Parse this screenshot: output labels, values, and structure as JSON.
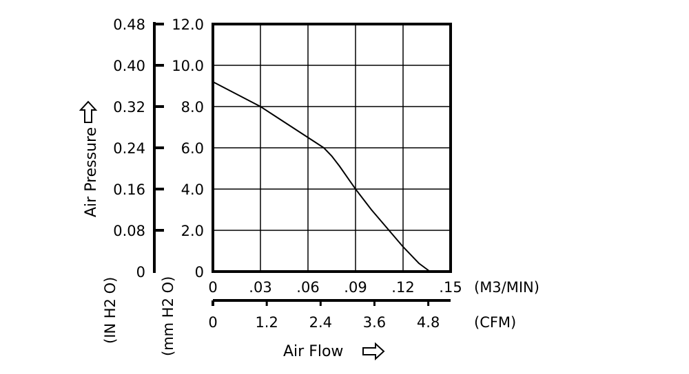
{
  "chart_data": {
    "type": "line",
    "title": "",
    "xlabel": "Air Flow",
    "ylabel": "Air Pressure",
    "x_unit_primary": "(M3/MIN)",
    "x_unit_secondary": "(CFM)",
    "y_unit_primary": "(mm H2 O)",
    "y_unit_secondary": "(IN H2 O)",
    "xlim": [
      0,
      0.15
    ],
    "ylim": [
      0,
      12
    ],
    "x_ticks": [
      0,
      0.03,
      0.06,
      0.09,
      0.12,
      0.15
    ],
    "x_tick_labels": [
      "0",
      ".03",
      ".06",
      ".09",
      ".12",
      ".15"
    ],
    "x2_ticks": [
      0,
      1.2,
      2.4,
      3.6,
      4.8
    ],
    "x2_tick_labels": [
      "0",
      "1.2",
      "2.4",
      "3.6",
      "4.8"
    ],
    "y_ticks": [
      0,
      2,
      4,
      6,
      8,
      10,
      12
    ],
    "y_tick_labels": [
      "0",
      "2.0",
      "4.0",
      "6.0",
      "8.0",
      "10.0",
      "12.0"
    ],
    "y2_tick_labels": [
      "0",
      "0.08",
      "0.16",
      "0.24",
      "0.32",
      "0.40",
      "0.48"
    ],
    "grid": true,
    "series": [
      {
        "name": "",
        "x": [
          0,
          0.01,
          0.02,
          0.03,
          0.04,
          0.05,
          0.06,
          0.065,
          0.07,
          0.075,
          0.08,
          0.09,
          0.1,
          0.11,
          0.12,
          0.13,
          0.137
        ],
        "y": [
          9.2,
          8.8,
          8.4,
          8.0,
          7.5,
          7.0,
          6.5,
          6.25,
          6.0,
          5.6,
          5.1,
          4.0,
          3.0,
          2.1,
          1.2,
          0.4,
          0
        ]
      }
    ]
  },
  "colors": {
    "line": "#000000",
    "background": "#ffffff"
  },
  "icons": {
    "axis_arrow": "hollow-arrow-icon"
  }
}
